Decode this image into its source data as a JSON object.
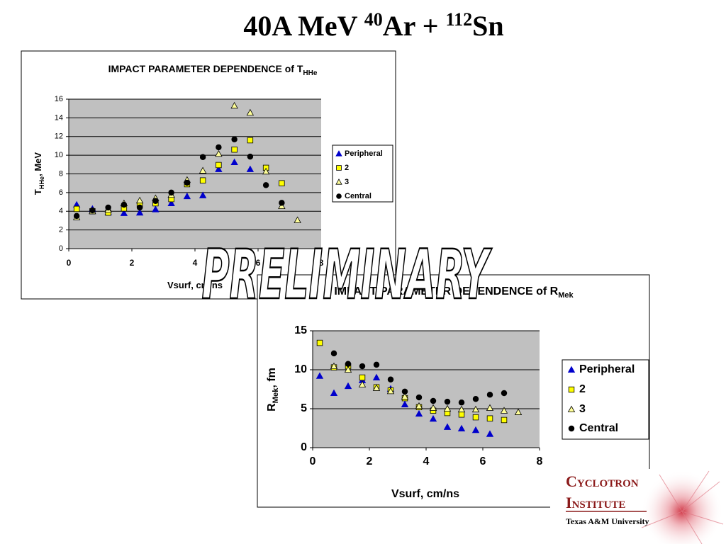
{
  "slide": {
    "title": [
      "40A MeV ",
      "40",
      "Ar + ",
      "112",
      "Sn"
    ],
    "watermark": "PRELIMINARY"
  },
  "logo": {
    "line1": "Cyclotron",
    "line2": "Institute",
    "line3": "Texas A&M University"
  },
  "chart_data": [
    {
      "type": "scatter",
      "title": "IMPACT PARAMETER DEPENDENCE of T",
      "title_sub": "HHe",
      "ylabel": [
        "T",
        "HHe",
        ", MeV"
      ],
      "xlabel": "Vsurf, cm/ns",
      "x": [
        0.25,
        0.75,
        1.25,
        1.75,
        2.25,
        2.75,
        3.25,
        3.75,
        4.25,
        4.75,
        5.25,
        5.75,
        6.25,
        6.75,
        7.25
      ],
      "series": [
        {
          "name": "Peripheral",
          "color": "#0000cc",
          "marker": "triangle",
          "values": [
            4.7,
            4.25,
            3.9,
            3.8,
            3.85,
            4.2,
            4.85,
            5.6,
            5.7,
            8.5,
            9.25,
            8.5,
            null,
            null,
            null
          ]
        },
        {
          "name": "2",
          "color": "#ffff00",
          "marker": "square",
          "values": [
            4.25,
            4.0,
            3.85,
            4.3,
            4.7,
            4.85,
            5.3,
            6.9,
            7.3,
            8.95,
            10.6,
            11.6,
            8.65,
            7.0,
            null
          ]
        },
        {
          "name": "3",
          "color": "#ffff99",
          "marker": "triangle",
          "values": [
            3.35,
            4.0,
            4.15,
            4.85,
            5.15,
            5.4,
            5.75,
            7.35,
            8.35,
            10.15,
            15.3,
            14.55,
            8.25,
            4.55,
            3.05
          ]
        },
        {
          "name": "Central",
          "color": "#000000",
          "marker": "circle",
          "values": [
            3.5,
            4.1,
            4.4,
            4.7,
            4.4,
            5.1,
            6.0,
            7.05,
            9.8,
            10.85,
            11.7,
            9.85,
            6.8,
            4.9,
            null
          ]
        }
      ],
      "xlim": [
        0,
        8
      ],
      "xticks": [
        0,
        2,
        4,
        6,
        8
      ],
      "ylim": [
        0,
        16
      ],
      "yticks": [
        0,
        2,
        4,
        6,
        8,
        10,
        12,
        14,
        16
      ],
      "grid": true,
      "legend": "right"
    },
    {
      "type": "scatter",
      "title": "IMPACT PARAMETER DEPENDENCE of R",
      "title_sub": "Mek",
      "ylabel": [
        "R",
        "Mek",
        ", fm"
      ],
      "xlabel": "Vsurf, cm/ns",
      "x": [
        0.25,
        0.75,
        1.25,
        1.75,
        2.25,
        2.75,
        3.25,
        3.75,
        4.25,
        4.75,
        5.25,
        5.75,
        6.25,
        6.75,
        7.25
      ],
      "series": [
        {
          "name": "Peripheral",
          "color": "#0000cc",
          "marker": "triangle",
          "values": [
            9.2,
            7.0,
            7.9,
            8.65,
            9.0,
            7.55,
            5.55,
            4.35,
            3.7,
            2.65,
            2.45,
            2.25,
            1.75,
            null,
            null
          ]
        },
        {
          "name": "2",
          "color": "#ffff00",
          "marker": "square",
          "values": [
            13.45,
            10.3,
            10.45,
            9.0,
            7.75,
            7.35,
            6.35,
            5.2,
            4.75,
            4.45,
            4.25,
            3.9,
            3.75,
            3.55,
            null
          ]
        },
        {
          "name": "3",
          "color": "#ffff99",
          "marker": "triangle",
          "values": [
            null,
            10.45,
            10.0,
            8.1,
            7.65,
            7.25,
            6.55,
            5.35,
            5.1,
            5.0,
            4.9,
            4.9,
            5.1,
            4.75,
            4.55
          ]
        },
        {
          "name": "Central",
          "color": "#000000",
          "marker": "circle",
          "values": [
            null,
            12.1,
            10.75,
            10.45,
            10.65,
            8.75,
            7.2,
            6.45,
            6.0,
            5.9,
            5.8,
            6.25,
            6.8,
            7.0,
            null
          ]
        }
      ],
      "xlim": [
        0,
        8
      ],
      "xticks": [
        0,
        2,
        4,
        6,
        8
      ],
      "ylim": [
        0,
        15
      ],
      "yticks": [
        0,
        5,
        10,
        15
      ],
      "grid": true,
      "legend": "right"
    }
  ]
}
